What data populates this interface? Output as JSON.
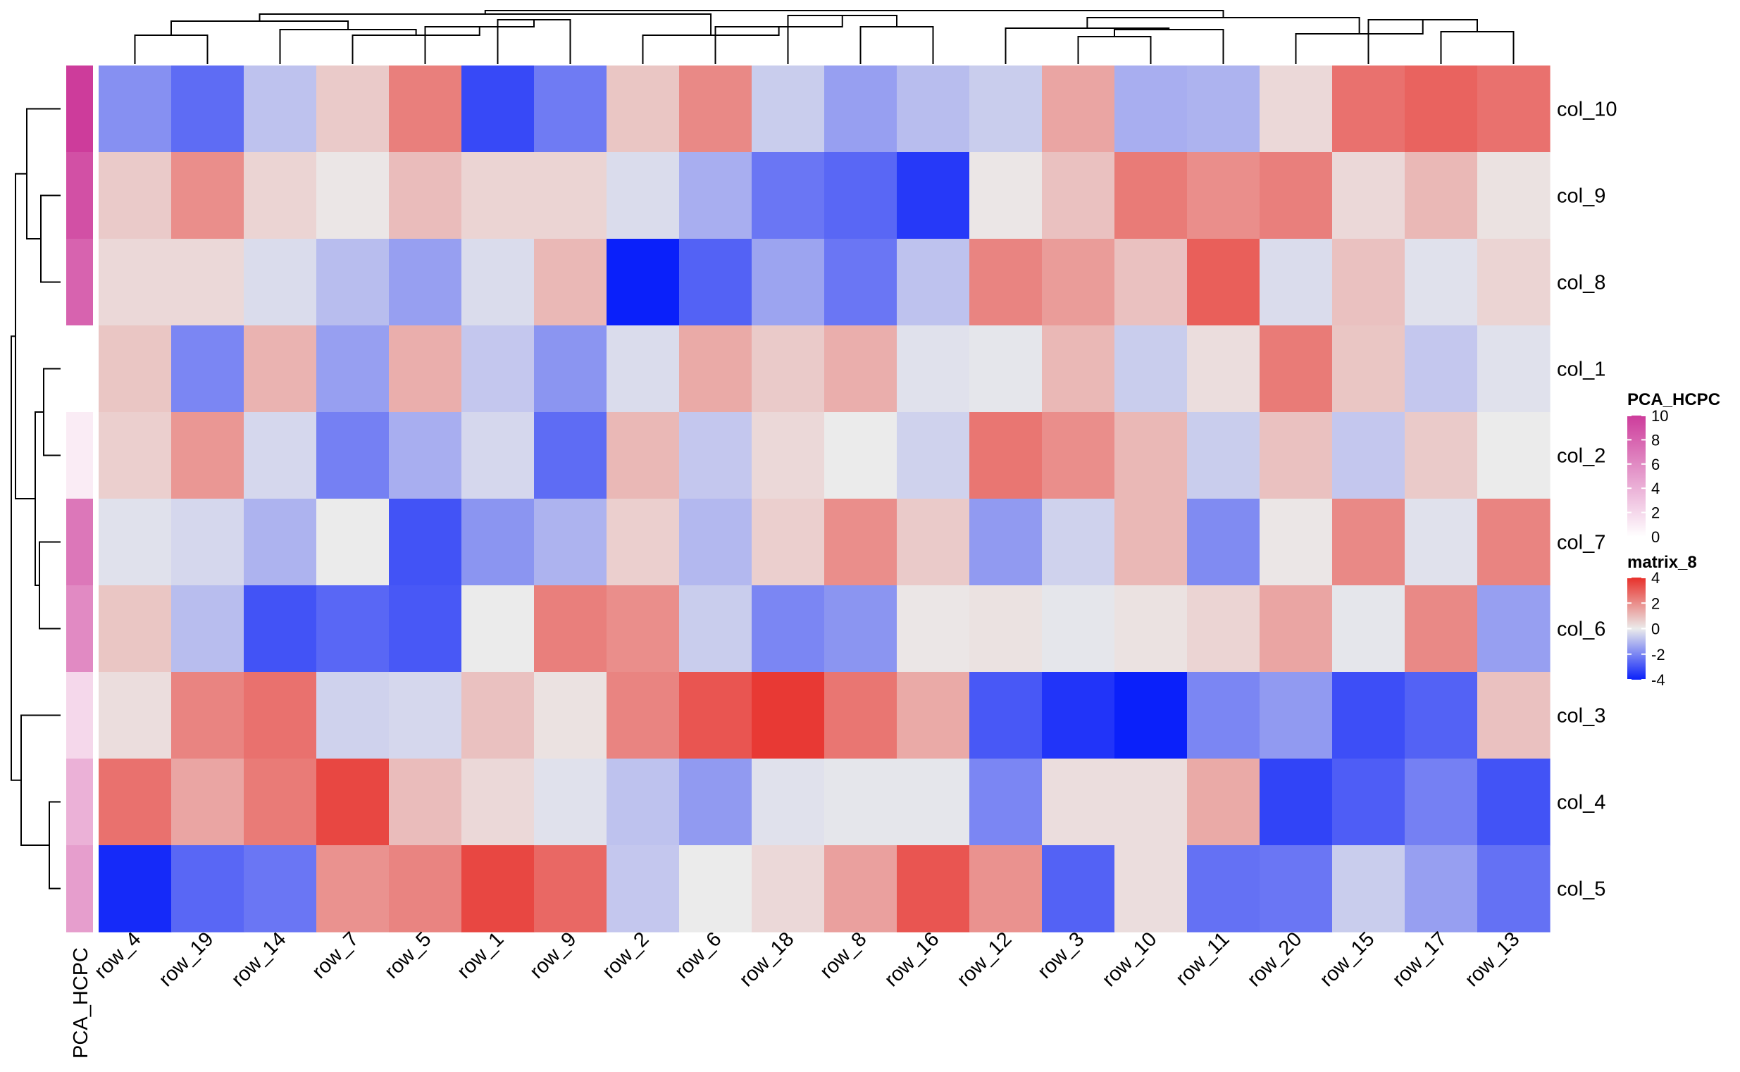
{
  "chart_data": {
    "type": "heatmap",
    "title": "",
    "xlabel": "",
    "ylabel": "",
    "columns": [
      "row_4",
      "row_19",
      "row_14",
      "row_7",
      "row_5",
      "row_1",
      "row_9",
      "row_2",
      "row_6",
      "row_18",
      "row_8",
      "row_16",
      "row_12",
      "row_3",
      "row_10",
      "row_11",
      "row_20",
      "row_15",
      "row_17",
      "row_13"
    ],
    "rows": [
      "col_10",
      "col_9",
      "col_8",
      "col_1",
      "col_2",
      "col_7",
      "col_6",
      "col_3",
      "col_4",
      "col_5"
    ],
    "values": [
      [
        -1.8,
        -2.5,
        -0.8,
        0.7,
        2.3,
        -3.2,
        -2.2,
        0.8,
        2.1,
        -0.6,
        -1.5,
        -0.9,
        -0.6,
        1.5,
        -1.2,
        -1.1,
        0.4,
        2.6,
        2.9,
        2.6
      ],
      [
        0.7,
        2.0,
        0.5,
        0.1,
        1.0,
        0.5,
        0.5,
        -0.3,
        -1.2,
        -2.3,
        -2.6,
        -3.5,
        0.1,
        0.9,
        2.4,
        2.0,
        2.3,
        0.4,
        1.1,
        0.2
      ],
      [
        0.4,
        0.4,
        -0.3,
        -0.9,
        -1.5,
        -0.3,
        1.1,
        -4.3,
        -2.7,
        -1.4,
        -2.3,
        -0.8,
        2.2,
        1.7,
        0.9,
        3.0,
        -0.3,
        0.9,
        -0.2,
        0.5
      ],
      [
        0.8,
        -2.0,
        1.2,
        -1.5,
        1.3,
        -0.7,
        -1.7,
        -0.3,
        1.4,
        0.7,
        1.3,
        -0.2,
        -0.1,
        1.1,
        -0.6,
        0.3,
        2.4,
        0.8,
        -0.7,
        -0.2
      ],
      [
        0.6,
        1.8,
        -0.4,
        -2.1,
        -1.2,
        -0.4,
        -2.5,
        1.1,
        -0.7,
        0.4,
        0.0,
        -0.5,
        2.5,
        2.0,
        1.1,
        -0.6,
        0.9,
        -0.7,
        0.7,
        0.0
      ],
      [
        -0.2,
        -0.4,
        -1.1,
        0.0,
        -3.0,
        -1.7,
        -1.1,
        0.6,
        -1.0,
        0.6,
        2.0,
        0.7,
        -1.6,
        -0.5,
        1.1,
        -1.9,
        0.1,
        2.1,
        -0.2,
        2.2
      ],
      [
        0.8,
        -0.9,
        -3.0,
        -2.6,
        -2.9,
        0.0,
        2.3,
        2.0,
        -0.6,
        -2.0,
        -1.7,
        0.1,
        0.2,
        -0.1,
        0.2,
        0.5,
        1.5,
        -0.1,
        2.1,
        -1.5
      ],
      [
        0.3,
        2.2,
        2.6,
        -0.5,
        -0.4,
        0.9,
        0.2,
        2.2,
        3.2,
        3.8,
        2.5,
        1.4,
        -2.9,
        -3.6,
        -4.4,
        -2.0,
        -1.6,
        -3.1,
        -2.7,
        0.9
      ],
      [
        2.6,
        1.5,
        2.4,
        3.5,
        1.0,
        0.4,
        -0.2,
        -0.8,
        -1.6,
        -0.2,
        -0.1,
        -0.1,
        -2.0,
        0.3,
        0.3,
        1.4,
        -3.3,
        -2.8,
        -2.1,
        -3.0
      ],
      [
        -3.8,
        -2.6,
        -2.3,
        1.9,
        2.2,
        3.5,
        2.8,
        -0.7,
        0.0,
        0.4,
        1.6,
        3.2,
        1.9,
        -2.7,
        0.3,
        -2.4,
        -2.3,
        -0.6,
        -1.5,
        -2.4
      ]
    ],
    "annotation": {
      "name": "PCA_HCPC",
      "values": [
        10.0,
        9.0,
        8.0,
        0.0,
        1.0,
        7.0,
        6.0,
        2.0,
        4.0,
        5.0
      ],
      "range": [
        0,
        10
      ]
    },
    "legends": [
      {
        "title": "PCA_HCPC",
        "ticks": [
          "10",
          "8",
          "6",
          "4",
          "2",
          "0"
        ],
        "colors": [
          "#cd3c9b",
          "#ffffff"
        ]
      },
      {
        "title": "matrix_8",
        "ticks": [
          "4",
          "2",
          "0",
          "-2",
          "-4"
        ],
        "colors": [
          "#e8302a",
          "#ebebeb",
          "#0a20fa"
        ]
      }
    ],
    "legend_position": "right",
    "grid": false,
    "dendrograms": {
      "columns": true,
      "rows": true
    }
  }
}
